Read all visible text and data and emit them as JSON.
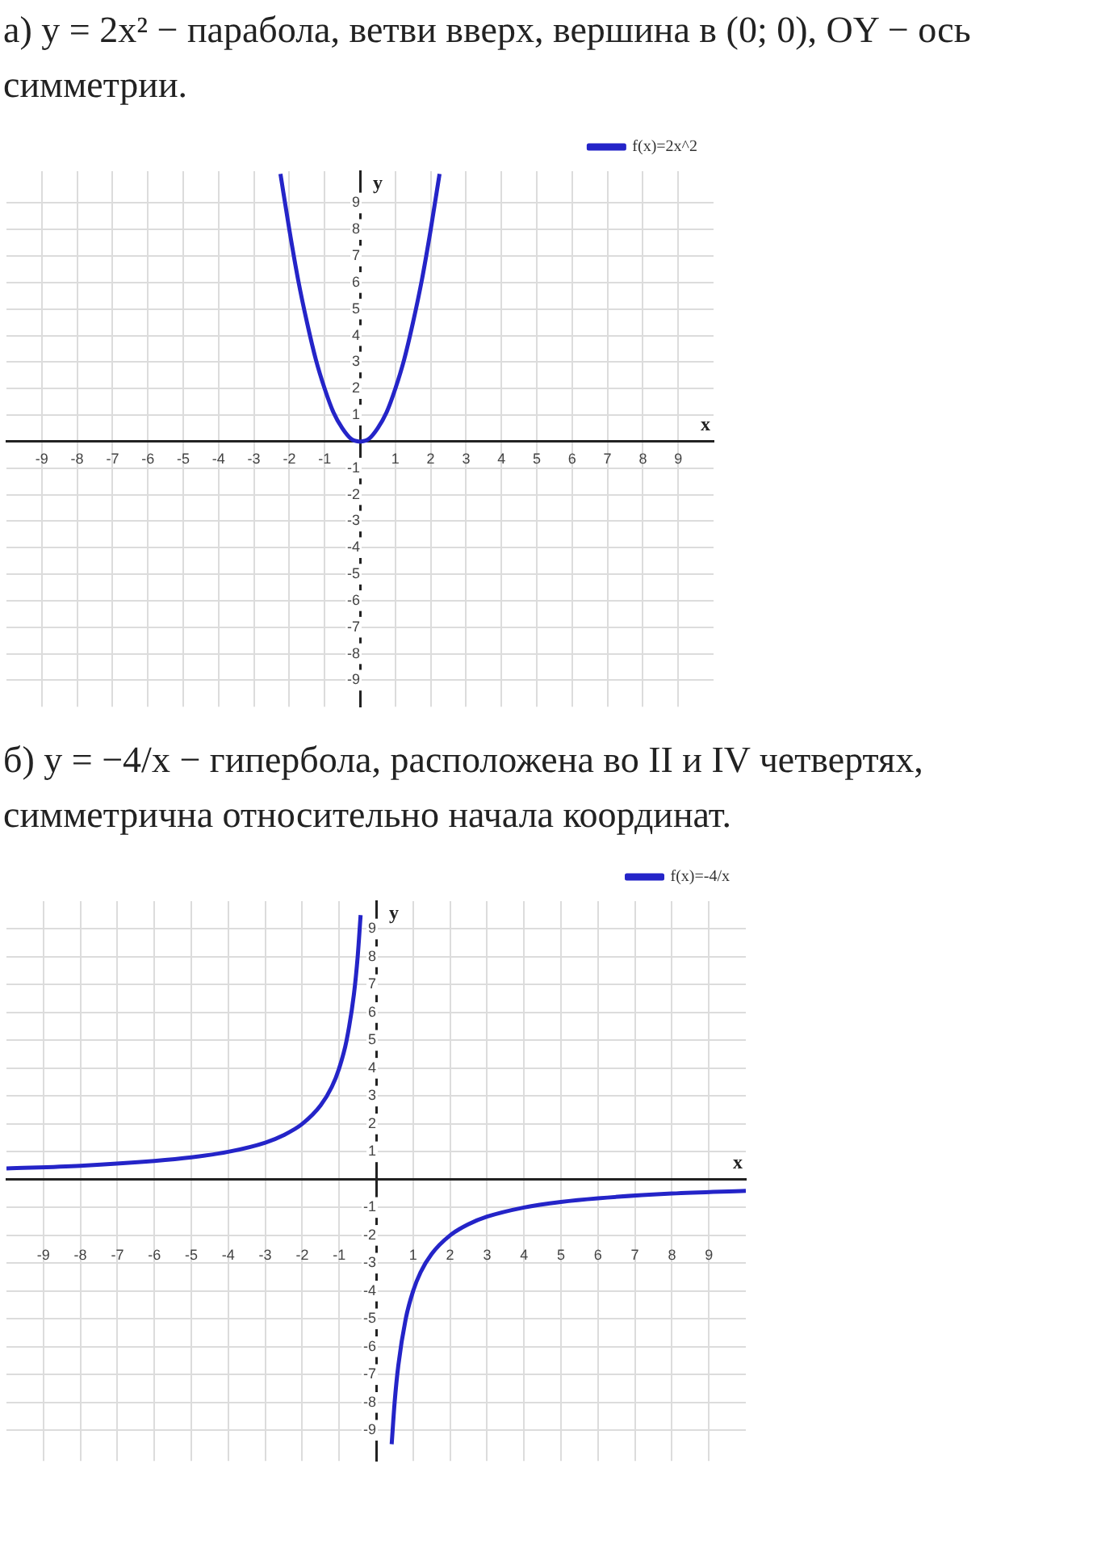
{
  "chart_data": [
    {
      "type": "line",
      "title": "а) y = 2x² − парабола, ветви вверх, вершина в (0; 0), OY − ось симметрии.",
      "xlabel": "x",
      "ylabel": "y",
      "x": [
        -2.25,
        -2,
        -1.75,
        -1.5,
        -1.25,
        -1,
        -0.75,
        -0.5,
        -0.25,
        0,
        0.25,
        0.5,
        0.75,
        1,
        1.25,
        1.5,
        1.75,
        2,
        2.25
      ],
      "series": [
        {
          "name": "f(x)=2x^2",
          "color": "#2424c8",
          "values": [
            10.1,
            8,
            6.1,
            4.5,
            3.1,
            2,
            1.1,
            0.5,
            0.1,
            0,
            0.1,
            0.5,
            1.1,
            2,
            3.1,
            4.5,
            6.1,
            8,
            10.1
          ]
        }
      ],
      "xlim": [
        -10,
        10
      ],
      "ylim": [
        -10,
        10.2
      ],
      "xticks": [
        -9,
        -8,
        -7,
        -6,
        -5,
        -4,
        -3,
        -2,
        -1,
        1,
        2,
        3,
        4,
        5,
        6,
        7,
        8,
        9
      ],
      "yticks": [
        -9,
        -8,
        -7,
        -6,
        -5,
        -4,
        -3,
        -2,
        -1,
        1,
        2,
        3,
        4,
        5,
        6,
        7,
        8,
        9
      ],
      "grid": true,
      "legend": "top right",
      "marker": "none",
      "line_style": "solid"
    },
    {
      "type": "line",
      "title": "б) y = −4/x − гипербола, расположена во II и IV четвертях, симметрична относительно начала координат.",
      "xlabel": "x",
      "ylabel": "y",
      "x": [
        -10,
        -8,
        -6,
        -5,
        -4,
        -3,
        -2.5,
        -2,
        -1.5,
        -1.2,
        -1,
        -0.8,
        -0.6,
        -0.5,
        -0.42,
        0,
        0.42,
        0.5,
        0.6,
        0.8,
        1,
        1.2,
        1.5,
        2,
        2.5,
        3,
        4,
        5,
        6,
        8,
        10
      ],
      "series": [
        {
          "name": "f(x)=-4/x",
          "color": "#2424c8",
          "values": [
            0.4,
            0.5,
            0.67,
            0.8,
            1,
            1.33,
            1.6,
            2,
            2.67,
            3.33,
            4,
            5,
            6.67,
            8,
            9.5,
            null,
            -9.5,
            -8,
            -6.67,
            -5,
            -4,
            -3.33,
            -2.67,
            -2,
            -1.6,
            -1.33,
            -1,
            -0.8,
            -0.67,
            -0.5,
            -0.4
          ]
        }
      ],
      "xlim": [
        -10,
        10
      ],
      "ylim": [
        -10.1,
        10
      ],
      "xticks": [
        -9,
        -8,
        -7,
        -6,
        -5,
        -4,
        -3,
        -2,
        -1,
        1,
        2,
        3,
        4,
        5,
        6,
        7,
        8,
        9
      ],
      "yticks": [
        -9,
        -8,
        -7,
        -6,
        -5,
        -4,
        -3,
        -2,
        -1,
        1,
        2,
        3,
        4,
        5,
        6,
        7,
        8,
        9
      ],
      "grid": true,
      "legend": "top right",
      "marker": "none",
      "line_style": "solid"
    }
  ]
}
